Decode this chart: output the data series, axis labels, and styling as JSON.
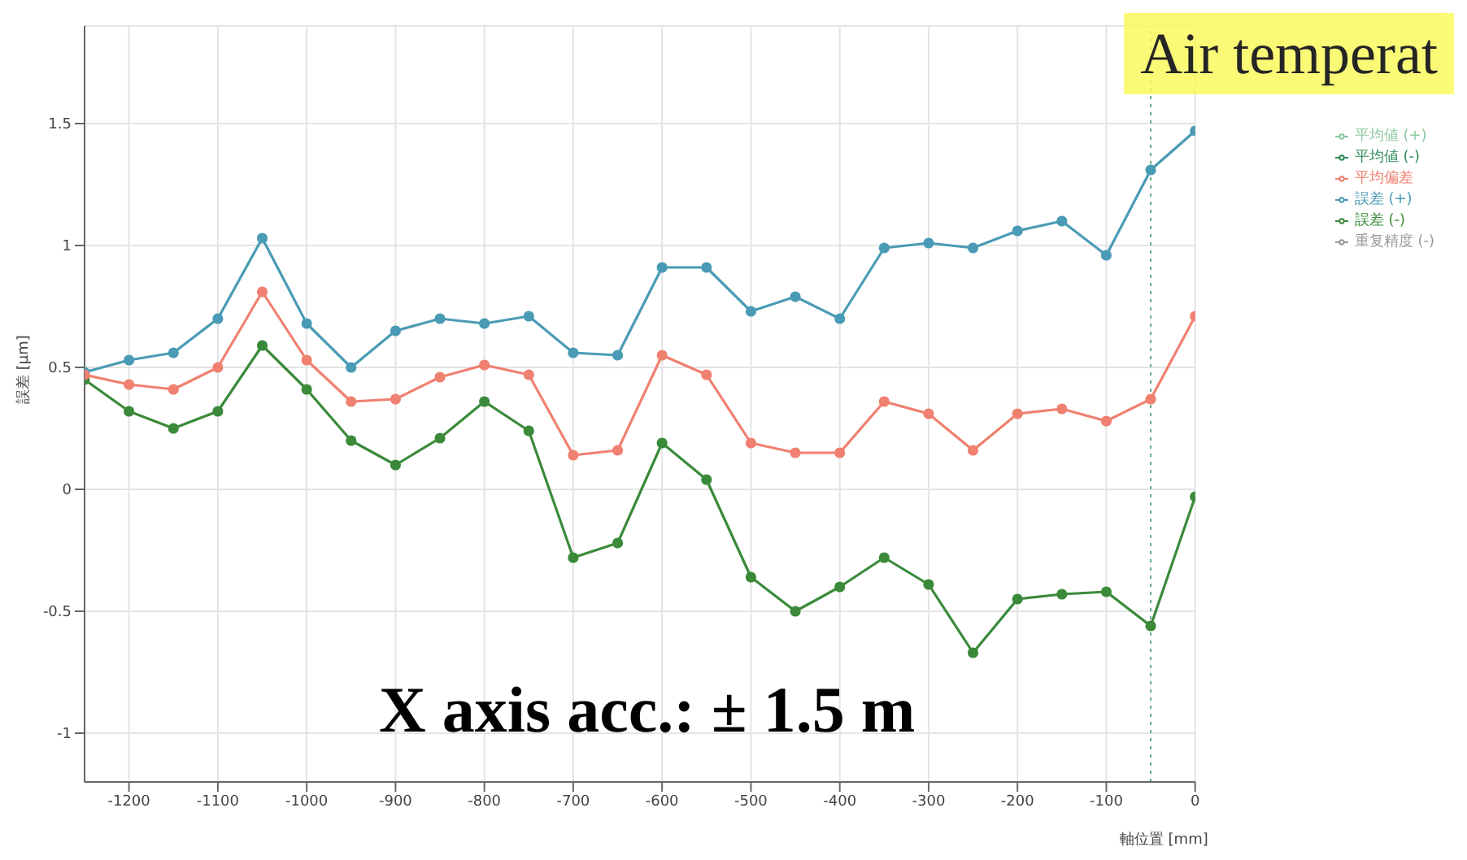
{
  "chart_data": {
    "type": "line",
    "xlabel": "軸位置 [mm]",
    "ylabel": "誤差 [μm]",
    "x": [
      -1250,
      -1200,
      -1150,
      -1100,
      -1050,
      -1000,
      -950,
      -900,
      -850,
      -800,
      -750,
      -700,
      -650,
      -600,
      -550,
      -500,
      -450,
      -400,
      -350,
      -300,
      -250,
      -200,
      -150,
      -100,
      -50,
      0
    ],
    "xlim": [
      -1250,
      0
    ],
    "xticks": [
      -1200,
      -1100,
      -1000,
      -900,
      -800,
      -700,
      -600,
      -500,
      -400,
      -300,
      -200,
      -100,
      0
    ],
    "ylim": [
      -1.2,
      1.9
    ],
    "yticks": [
      -1,
      -0.5,
      0,
      0.5,
      1,
      1.5
    ],
    "grid": true,
    "legend": "right",
    "marker": "circle",
    "line_style": "solid",
    "series": [
      {
        "name": "誤差 (+)",
        "color": "#4a9bb5",
        "values": [
          0.48,
          0.53,
          0.56,
          0.7,
          1.03,
          0.68,
          0.5,
          0.65,
          0.7,
          0.68,
          0.71,
          0.56,
          0.55,
          0.91,
          0.91,
          0.73,
          0.79,
          0.7,
          0.99,
          1.01,
          0.99,
          1.06,
          1.1,
          0.96,
          1.31,
          1.47
        ]
      },
      {
        "name": "平均値 (+)",
        "color": "#8cc8a0",
        "values": [
          null,
          null,
          null,
          null,
          null,
          null,
          null,
          null,
          null,
          null,
          null,
          null,
          null,
          null,
          null,
          null,
          null,
          null,
          null,
          null,
          null,
          null,
          null,
          null,
          null,
          null
        ]
      },
      {
        "name": "重复精度 (-)",
        "color": "#999999",
        "values": [
          null,
          null,
          null,
          null,
          null,
          null,
          null,
          null,
          null,
          null,
          null,
          null,
          null,
          null,
          null,
          null,
          null,
          null,
          null,
          null,
          null,
          null,
          null,
          null,
          null,
          null
        ]
      },
      {
        "name": "誤差 (-)",
        "color": "#3a8a3a",
        "values": [
          0.45,
          0.32,
          0.25,
          0.32,
          0.59,
          0.41,
          0.2,
          0.1,
          0.21,
          0.36,
          0.24,
          -0.28,
          -0.22,
          0.19,
          0.04,
          -0.36,
          -0.5,
          -0.4,
          -0.28,
          -0.39,
          -0.67,
          -0.45,
          -0.43,
          -0.42,
          -0.56,
          -0.03
        ]
      },
      {
        "name": "平均値 (-)",
        "color": "#2e8b57",
        "values": [
          null,
          null,
          null,
          null,
          null,
          null,
          null,
          null,
          null,
          null,
          null,
          null,
          null,
          null,
          null,
          null,
          null,
          null,
          null,
          null,
          null,
          null,
          null,
          null,
          null,
          null
        ]
      },
      {
        "name": "平均偏差",
        "color": "#f08070",
        "values": [
          0.47,
          0.43,
          0.41,
          0.5,
          0.81,
          0.53,
          0.36,
          0.37,
          0.46,
          0.51,
          0.47,
          0.14,
          0.16,
          0.55,
          0.47,
          0.19,
          0.15,
          0.15,
          0.36,
          0.31,
          0.16,
          0.31,
          0.33,
          0.28,
          0.37,
          0.71
        ]
      }
    ],
    "ref_lines": [
      {
        "axis": "x",
        "value": -50,
        "color": "#6aaa8a",
        "line_style": "dotted"
      }
    ],
    "annotations": [
      "Air temperat",
      "X axis acc.: ± 1.5  m"
    ]
  }
}
